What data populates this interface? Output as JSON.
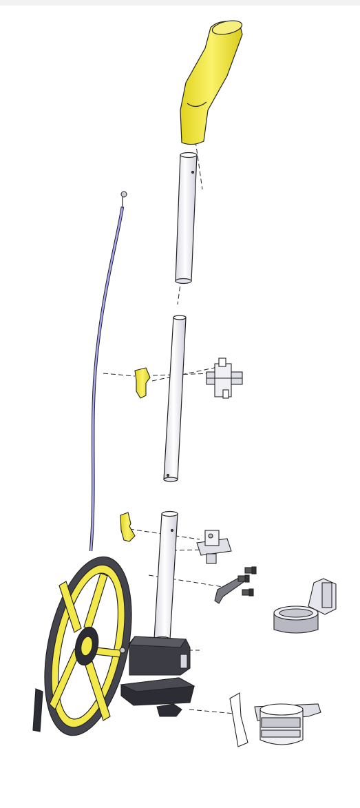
{
  "diagram": {
    "type": "exploded-assembly-view",
    "parts": [
      {
        "name": "handle-grip",
        "color": "#f2e84a"
      },
      {
        "name": "upper-tube",
        "color": "#f4f4f8"
      },
      {
        "name": "cable",
        "color": "#a9a6ef"
      },
      {
        "name": "middle-tube",
        "color": "#f4f4f8"
      },
      {
        "name": "yellow-latch-upper",
        "color": "#f2e84a"
      },
      {
        "name": "folding-hinge-upper",
        "color": "#e8e8ee"
      },
      {
        "name": "yellow-latch-lower",
        "color": "#f2e84a"
      },
      {
        "name": "lower-tube",
        "color": "#f4f4f8"
      },
      {
        "name": "folding-hinge-lower",
        "color": "#e8e8ee"
      },
      {
        "name": "bracket-with-screws",
        "color": "#6a6a70"
      },
      {
        "name": "cup-holder",
        "color": "#e8e8ee"
      },
      {
        "name": "wheel-tire",
        "color": "#4a4a50"
      },
      {
        "name": "wheel-hub",
        "color": "#f2e84a"
      },
      {
        "name": "counter-housing",
        "color": "#3c3c44"
      },
      {
        "name": "stand-base",
        "color": "#2c2c34"
      },
      {
        "name": "brake-clamp",
        "color": "#e8e8ee"
      }
    ]
  }
}
